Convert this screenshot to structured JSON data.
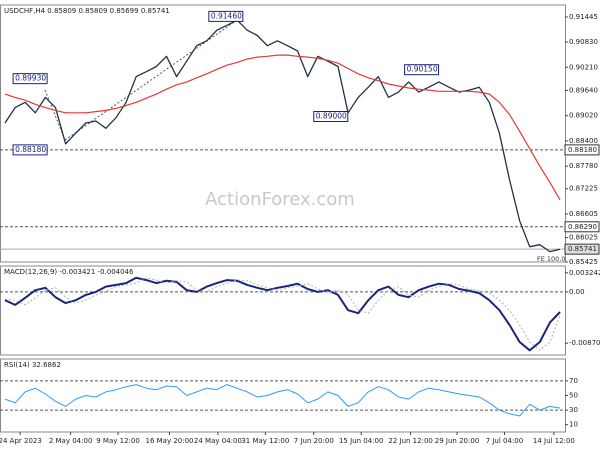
{
  "chart_data": [
    {
      "type": "line",
      "title": "USDCHF,H4  0.85809 0.85809 0.85699 0.85741",
      "watermark": "ActionForex.com",
      "note": "FE 100.0",
      "xlim": [
        -0.5,
        55.5
      ],
      "ylim": [
        0.85425,
        0.9174
      ],
      "yticks": [
        0.91445,
        {
          "value": 0.9083,
          "label": "0.90830"
        },
        {
          "value": 0.9021,
          "label": "0.90210"
        },
        {
          "value": 0.8964,
          "label": "0.89640"
        },
        {
          "value": 0.8902,
          "label": "0.89020"
        },
        {
          "value": 0.884,
          "label": "0.88400"
        },
        {
          "value": 0.8778,
          "label": "0.87780"
        },
        0.87225,
        0.86605,
        0.86025,
        0.85425
      ],
      "levels": [
        {
          "value": 0.8818,
          "label": "0.88180",
          "dash": true
        },
        {
          "value": 0.8629,
          "label": "0.86290",
          "dash": true
        },
        {
          "value": 0.85741,
          "label": "0.85741",
          "dash": false
        }
      ],
      "annotations": [
        {
          "x": 20.2,
          "value": 0.9146,
          "label": "0.91460"
        },
        {
          "x": 0.8,
          "value": 0.8993,
          "label": "0.89930"
        },
        {
          "x": 0.8,
          "value": 0.8818,
          "label": "0.88180"
        },
        {
          "x": 30.6,
          "value": 0.89,
          "label": "0.89000"
        },
        {
          "x": 39.6,
          "value": 0.9015,
          "label": "0.90150"
        }
      ],
      "series": [
        {
          "color": "#1f3347",
          "width": 1.3,
          "values": [
            0.8884,
            0.8922,
            0.8935,
            0.8909,
            0.8947,
            0.8922,
            0.8833,
            0.8859,
            0.8884,
            0.8889,
            0.8871,
            0.8897,
            0.8935,
            0.8998,
            0.901,
            0.9023,
            0.9048,
            0.8998,
            0.9036,
            0.9074,
            0.9086,
            0.9112,
            0.9124,
            0.9137,
            0.9112,
            0.9099,
            0.9074,
            0.9086,
            0.9074,
            0.9061,
            0.8998,
            0.9048,
            0.9036,
            0.9023,
            0.8909,
            0.8947,
            0.8972,
            0.8998,
            0.8947,
            0.896,
            0.8985,
            0.896,
            0.8972,
            0.8985,
            0.8972,
            0.896,
            0.8965,
            0.8972,
            0.8935,
            0.8859,
            0.8745,
            0.8644,
            0.858,
            0.8585,
            0.8568,
            0.8574
          ]
        },
        {
          "color": "#e53935",
          "width": 1.2,
          "values": [
            0.8955,
            0.8947,
            0.894,
            0.893,
            0.8922,
            0.8915,
            0.8909,
            0.8909,
            0.8909,
            0.8912,
            0.8915,
            0.892,
            0.8927,
            0.8935,
            0.8945,
            0.8955,
            0.8967,
            0.8978,
            0.8985,
            0.8995,
            0.9005,
            0.9016,
            0.9026,
            0.9033,
            0.9041,
            0.9046,
            0.9048,
            0.9051,
            0.9051,
            0.9048,
            0.9046,
            0.9043,
            0.9038,
            0.9031,
            0.9018,
            0.9005,
            0.8995,
            0.8988,
            0.898,
            0.8975,
            0.897,
            0.8967,
            0.8965,
            0.8962,
            0.8962,
            0.8962,
            0.8962,
            0.896,
            0.8955,
            0.8935,
            0.8905,
            0.8864,
            0.8821,
            0.8778,
            0.8738,
            0.8695
          ]
        }
      ]
    },
    {
      "type": "line",
      "title": "MACD(12,26,9) -0.003421 -0.004046",
      "xlim": [
        -0.5,
        55.5
      ],
      "ylim": [
        -0.0107,
        0.0044
      ],
      "yticks": [
        0.003242,
        {
          "value": 0,
          "label": "0.00"
        },
        -0.008703
      ],
      "levels": [
        {
          "value": 0,
          "dash": true
        }
      ],
      "series": [
        {
          "color": "#1a237e",
          "width": 2,
          "values": [
            -0.0014,
            -0.0022,
            -0.001,
            0.0003,
            0.0007,
            -0.0009,
            -0.0019,
            -0.0014,
            -0.0005,
            0,
            0.0009,
            0.0012,
            0.0015,
            0.0024,
            0.002,
            0.0015,
            0.0019,
            0.0017,
            0.0003,
            0,
            0.0009,
            0.0015,
            0.002,
            0.0019,
            0.0012,
            0.0007,
            0.0003,
            0.0007,
            0.001,
            0.0014,
            0.0005,
            0,
            0.0003,
            -0.0005,
            -0.0031,
            -0.0036,
            -0.0014,
            0.0003,
            0.0009,
            -0.0005,
            -0.0009,
            0.0003,
            0.0009,
            0.0014,
            0.0012,
            0.0005,
            0.0002,
            -0.0002,
            -0.0014,
            -0.0031,
            -0.0056,
            -0.0085,
            -0.0099,
            -0.0085,
            -0.0052,
            -0.0034
          ]
        },
        {
          "color": "#b0b0b0",
          "width": 1,
          "dash": true,
          "values": [
            -0.0012,
            -0.0014,
            -0.0022,
            -0.001,
            0.0003,
            0.0007,
            -0.0009,
            -0.0019,
            -0.0014,
            -0.0005,
            0,
            0.0009,
            0.0012,
            0.0015,
            0.0024,
            0.002,
            0.0015,
            0.0019,
            0.0017,
            0.0003,
            0,
            0.0009,
            0.0015,
            0.002,
            0.0019,
            0.0012,
            0.0007,
            0.0003,
            0.0007,
            0.001,
            0.0014,
            0.0005,
            0,
            0.0003,
            -0.0005,
            -0.0031,
            -0.0036,
            -0.0014,
            0.0003,
            0.0009,
            -0.0005,
            -0.0009,
            0.0003,
            0.0009,
            0.0014,
            0.0012,
            0.0005,
            0.0002,
            -0.0002,
            -0.0014,
            -0.0031,
            -0.0056,
            -0.0085,
            -0.0099,
            -0.0085,
            -0.004
          ]
        }
      ]
    },
    {
      "type": "line",
      "title": "RSI(14) 32.6862",
      "xlim": [
        -0.5,
        55.5
      ],
      "ylim": [
        0,
        100
      ],
      "yticks": [
        70,
        50,
        30,
        10
      ],
      "levels": [
        {
          "value": 70,
          "dash": true
        },
        {
          "value": 30,
          "dash": true
        }
      ],
      "xticks": [
        {
          "value": 1.5,
          "label": "24 Apr 2023"
        },
        {
          "value": 6.5,
          "label": "2 May 04:00"
        },
        {
          "value": 11.2,
          "label": "9 May 12:00"
        },
        {
          "value": 16.3,
          "label": "16 May 20:00"
        },
        {
          "value": 21.1,
          "label": "24 May 04:00"
        },
        {
          "value": 25.8,
          "label": "31 May 12:00"
        },
        {
          "value": 30.6,
          "label": "7 Jun 20:00"
        },
        {
          "value": 35.3,
          "label": "15 Jun 04:00"
        },
        {
          "value": 40.2,
          "label": "22 Jun 12:00"
        },
        {
          "value": 44.8,
          "label": "29 Jun 20:00"
        },
        {
          "value": 49.5,
          "label": "7 Jul 04:00"
        },
        {
          "value": 54.4,
          "label": "14 Jul 12:00"
        }
      ],
      "series": [
        {
          "color": "#3399ff",
          "width": 1,
          "values": [
            45,
            40,
            55,
            60,
            52,
            42,
            35,
            45,
            50,
            48,
            55,
            58,
            62,
            65,
            60,
            58,
            63,
            62,
            50,
            55,
            60,
            58,
            65,
            60,
            55,
            48,
            50,
            55,
            58,
            52,
            40,
            45,
            55,
            50,
            35,
            40,
            55,
            62,
            58,
            48,
            45,
            55,
            60,
            58,
            55,
            52,
            50,
            48,
            40,
            30,
            25,
            22,
            38,
            30,
            35,
            32.6862
          ]
        }
      ]
    }
  ]
}
